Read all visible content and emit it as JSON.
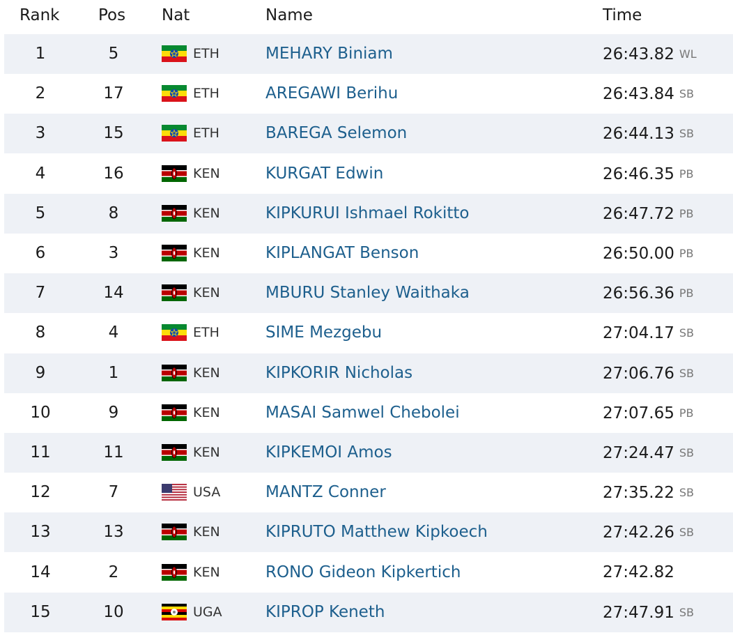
{
  "table": {
    "headers": [
      "Rank",
      "Pos",
      "Nat",
      "Name",
      "Time"
    ],
    "rows": [
      {
        "rank": 1,
        "pos": 5,
        "nat": "ETH",
        "name": "MEHARY Biniam",
        "time": "26:43.82",
        "note": "WL"
      },
      {
        "rank": 2,
        "pos": 17,
        "nat": "ETH",
        "name": "AREGAWI Berihu",
        "time": "26:43.84",
        "note": "SB"
      },
      {
        "rank": 3,
        "pos": 15,
        "nat": "ETH",
        "name": "BAREGA Selemon",
        "time": "26:44.13",
        "note": "SB"
      },
      {
        "rank": 4,
        "pos": 16,
        "nat": "KEN",
        "name": "KURGAT Edwin",
        "time": "26:46.35",
        "note": "PB"
      },
      {
        "rank": 5,
        "pos": 8,
        "nat": "KEN",
        "name": "KIPKURUI Ishmael Rokitto",
        "time": "26:47.72",
        "note": "PB"
      },
      {
        "rank": 6,
        "pos": 3,
        "nat": "KEN",
        "name": "KIPLANGAT Benson",
        "time": "26:50.00",
        "note": "PB"
      },
      {
        "rank": 7,
        "pos": 14,
        "nat": "KEN",
        "name": "MBURU Stanley Waithaka",
        "time": "26:56.36",
        "note": "PB"
      },
      {
        "rank": 8,
        "pos": 4,
        "nat": "ETH",
        "name": "SIME Mezgebu",
        "time": "27:04.17",
        "note": "SB"
      },
      {
        "rank": 9,
        "pos": 1,
        "nat": "KEN",
        "name": "KIPKORIR Nicholas",
        "time": "27:06.76",
        "note": "SB"
      },
      {
        "rank": 10,
        "pos": 9,
        "nat": "KEN",
        "name": "MASAI Samwel Chebolei",
        "time": "27:07.65",
        "note": "PB"
      },
      {
        "rank": 11,
        "pos": 11,
        "nat": "KEN",
        "name": "KIPKEMOI Amos",
        "time": "27:24.47",
        "note": "SB"
      },
      {
        "rank": 12,
        "pos": 7,
        "nat": "USA",
        "name": "MANTZ Conner",
        "time": "27:35.22",
        "note": "SB"
      },
      {
        "rank": 13,
        "pos": 13,
        "nat": "KEN",
        "name": "KIPRUTO Matthew Kipkoech",
        "time": "27:42.26",
        "note": "SB"
      },
      {
        "rank": 14,
        "pos": 2,
        "nat": "KEN",
        "name": "RONO Gideon Kipkertich",
        "time": "27:42.82"
      },
      {
        "rank": 15,
        "pos": 10,
        "nat": "UGA",
        "name": "KIPROP Keneth",
        "time": "27:47.91",
        "note": "SB"
      }
    ]
  }
}
